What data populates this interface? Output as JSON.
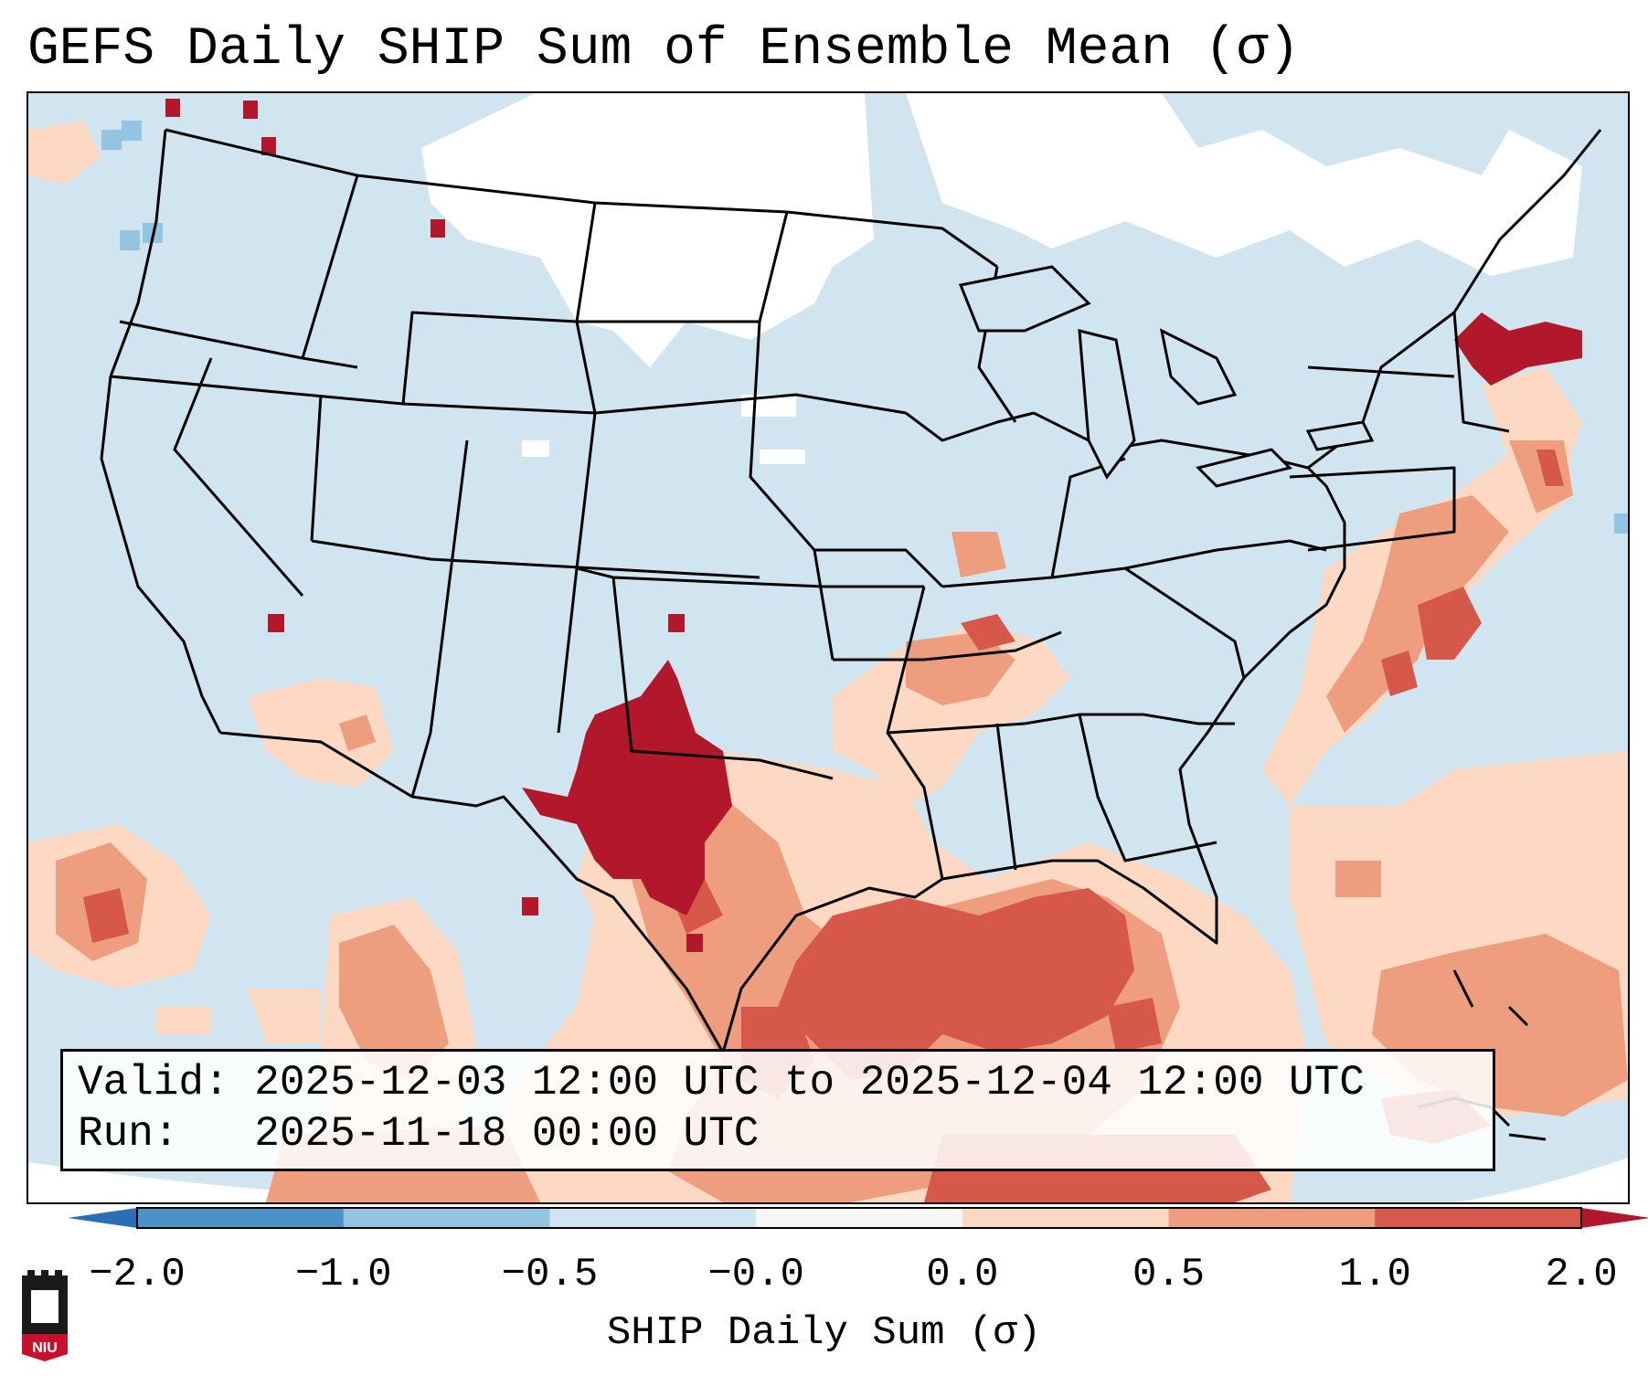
{
  "title": "GEFS Daily SHIP Sum of Ensemble Mean (σ)",
  "info": {
    "valid_label": "Valid:",
    "valid_value": "2025-12-03 12:00 UTC to 2025-12-04 12:00 UTC",
    "run_label": "Run:",
    "run_value": "2025-11-18 00:00 UTC"
  },
  "colorbar": {
    "label": "SHIP Daily Sum (σ)",
    "ticks": [
      "−2.0",
      "−1.0",
      "−0.5",
      "−0.0",
      "0.0",
      "0.5",
      "1.0",
      "2.0"
    ],
    "colors": [
      "#2a6fb5",
      "#4993c8",
      "#93c4e1",
      "#d1e5f0",
      "#f7f7f7",
      "#fdd9c4",
      "#ee9d7e",
      "#d5584b",
      "#b2172b"
    ],
    "extend": "both"
  },
  "map": {
    "projection": "Lambert conformal (CONUS)",
    "background_class_color": "#d1e5f0",
    "no_data_color": "#ffffff",
    "regions": [
      {
        "name": "southwest-texas-max",
        "category": "> 1.0"
      },
      {
        "name": "gulf-of-mexico",
        "category": "0.5 to 1.0"
      },
      {
        "name": "southeast-coast",
        "category": "0.0 to 0.5"
      },
      {
        "name": "northern-plains",
        "category": "no data"
      }
    ]
  },
  "logo_text": "NIU"
}
